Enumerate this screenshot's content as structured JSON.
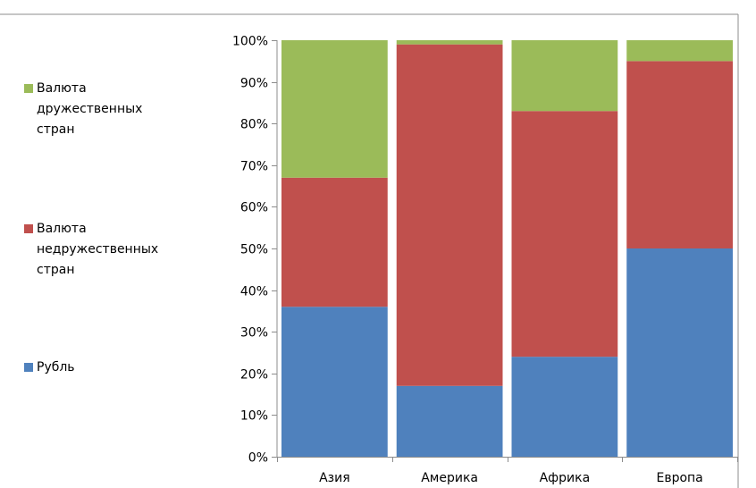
{
  "chart_data": {
    "type": "bar",
    "stacked": "percent",
    "categories": [
      "Азия",
      "Америка",
      "Африка",
      "Европа"
    ],
    "series": [
      {
        "name": "Рубль",
        "values": [
          36,
          17,
          24,
          50
        ],
        "color": "#4F81BD"
      },
      {
        "name": "Валюта недружественных стран",
        "values": [
          31,
          82,
          59,
          45
        ],
        "color": "#C0504D"
      },
      {
        "name": "Валюта дружественных стран",
        "values": [
          33,
          1,
          17,
          5
        ],
        "color": "#9BBB59"
      }
    ],
    "yticks": [
      "0%",
      "10%",
      "20%",
      "30%",
      "40%",
      "50%",
      "60%",
      "70%",
      "80%",
      "90%",
      "100%"
    ],
    "ylim": [
      0,
      100
    ],
    "grid": false,
    "legend_position": "left",
    "legend": [
      {
        "lines": [
          "Валюта",
          "дружественных",
          "стран"
        ],
        "color": "#9BBB59"
      },
      {
        "lines": [
          "Валюта",
          "недружественных",
          "стран"
        ],
        "color": "#C0504D"
      },
      {
        "lines": [
          "Рубль"
        ],
        "color": "#4F81BD"
      }
    ]
  }
}
